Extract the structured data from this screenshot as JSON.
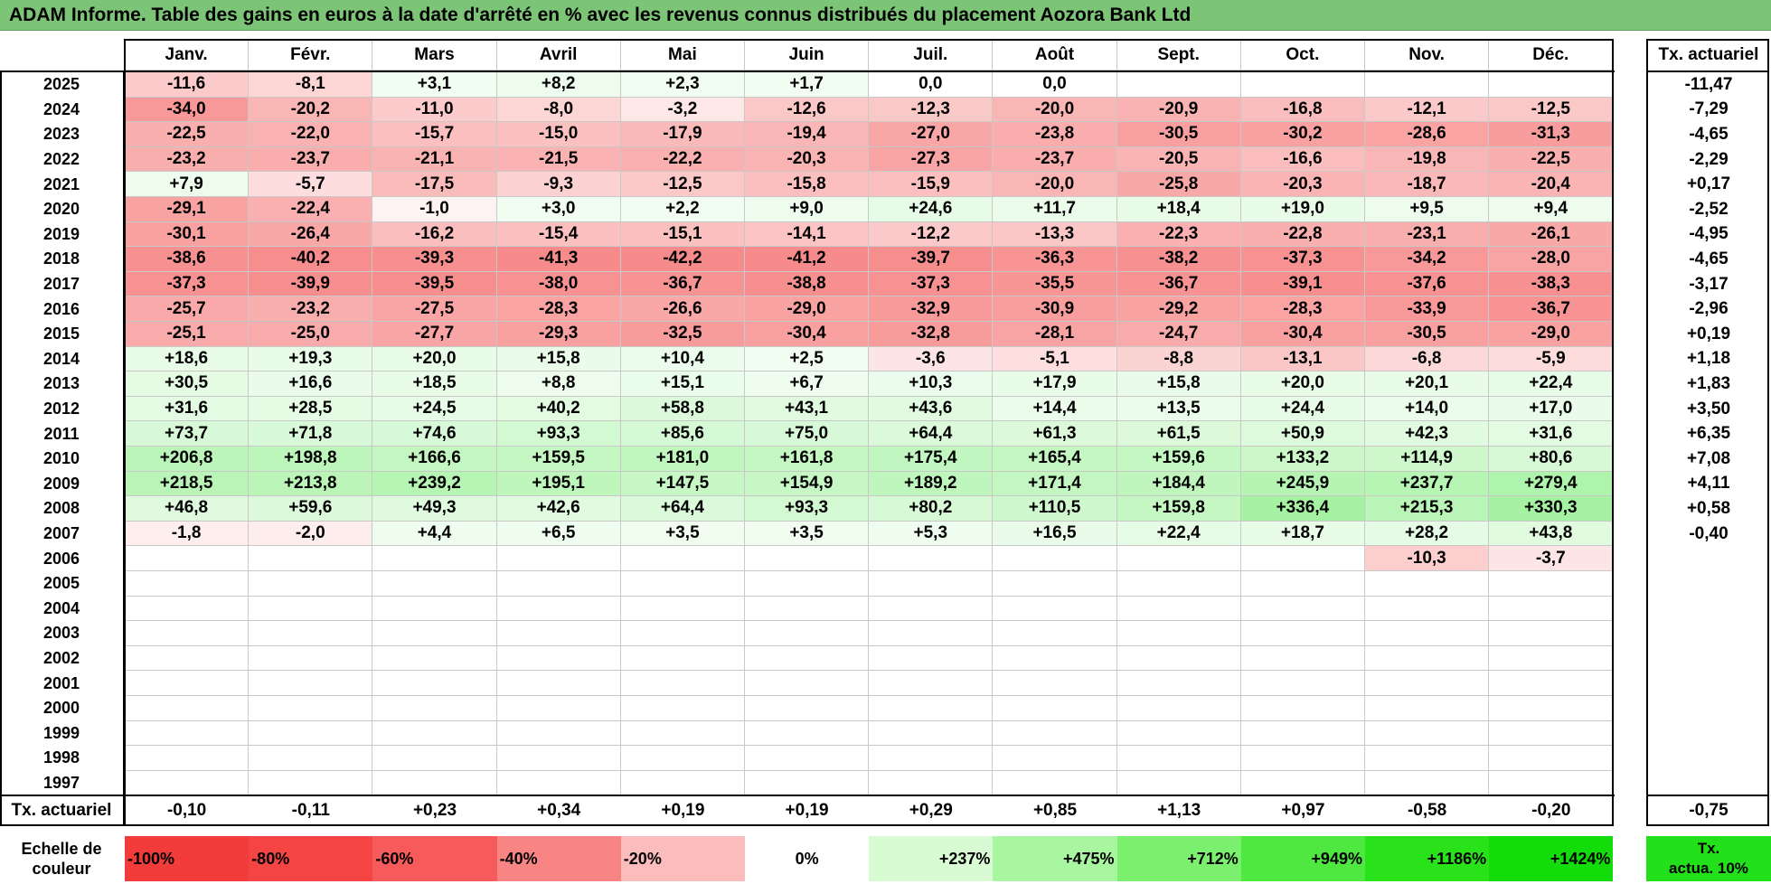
{
  "title": "ADAM Informe. Table des gains en euros à la date d'arrêté en % avec les revenus connus distribués du placement Aozora Bank Ltd",
  "chart_data": {
    "type": "heatmap",
    "months": [
      "Janv.",
      "Févr.",
      "Mars",
      "Avril",
      "Mai",
      "Juin",
      "Juil.",
      "Août",
      "Sept.",
      "Oct.",
      "Nov.",
      "Déc."
    ],
    "years": [
      "2025",
      "2024",
      "2023",
      "2022",
      "2021",
      "2020",
      "2019",
      "2018",
      "2017",
      "2016",
      "2015",
      "2014",
      "2013",
      "2012",
      "2011",
      "2010",
      "2009",
      "2008",
      "2007",
      "2006",
      "2005",
      "2004",
      "2003",
      "2002",
      "2001",
      "2000",
      "1999",
      "1998",
      "1997"
    ],
    "rate_column_header": "Tx. actuariel",
    "values": [
      [
        "-11,6",
        "-8,1",
        "+3,1",
        "+8,2",
        "+2,3",
        "+1,7",
        "0,0",
        "0,0",
        "",
        "",
        "",
        ""
      ],
      [
        "-34,0",
        "-20,2",
        "-11,0",
        "-8,0",
        "-3,2",
        "-12,6",
        "-12,3",
        "-20,0",
        "-20,9",
        "-16,8",
        "-12,1",
        "-12,5"
      ],
      [
        "-22,5",
        "-22,0",
        "-15,7",
        "-15,0",
        "-17,9",
        "-19,4",
        "-27,0",
        "-23,8",
        "-30,5",
        "-30,2",
        "-28,6",
        "-31,3"
      ],
      [
        "-23,2",
        "-23,7",
        "-21,1",
        "-21,5",
        "-22,2",
        "-20,3",
        "-27,3",
        "-23,7",
        "-20,5",
        "-16,6",
        "-19,8",
        "-22,5"
      ],
      [
        "+7,9",
        "-5,7",
        "-17,5",
        "-9,3",
        "-12,5",
        "-15,8",
        "-15,9",
        "-20,0",
        "-25,8",
        "-20,3",
        "-18,7",
        "-20,4"
      ],
      [
        "-29,1",
        "-22,4",
        "-1,0",
        "+3,0",
        "+2,2",
        "+9,0",
        "+24,6",
        "+11,7",
        "+18,4",
        "+19,0",
        "+9,5",
        "+9,4"
      ],
      [
        "-30,1",
        "-26,4",
        "-16,2",
        "-15,4",
        "-15,1",
        "-14,1",
        "-12,2",
        "-13,3",
        "-22,3",
        "-22,8",
        "-23,1",
        "-26,1"
      ],
      [
        "-38,6",
        "-40,2",
        "-39,3",
        "-41,3",
        "-42,2",
        "-41,2",
        "-39,7",
        "-36,3",
        "-38,2",
        "-37,3",
        "-34,2",
        "-28,0"
      ],
      [
        "-37,3",
        "-39,9",
        "-39,5",
        "-38,0",
        "-36,7",
        "-38,8",
        "-37,3",
        "-35,5",
        "-36,7",
        "-39,1",
        "-37,6",
        "-38,3"
      ],
      [
        "-25,7",
        "-23,2",
        "-27,5",
        "-28,3",
        "-26,6",
        "-29,0",
        "-32,9",
        "-30,9",
        "-29,2",
        "-28,3",
        "-33,9",
        "-36,7"
      ],
      [
        "-25,1",
        "-25,0",
        "-27,7",
        "-29,3",
        "-32,5",
        "-30,4",
        "-32,8",
        "-28,1",
        "-24,7",
        "-30,4",
        "-30,5",
        "-29,0"
      ],
      [
        "+18,6",
        "+19,3",
        "+20,0",
        "+15,8",
        "+10,4",
        "+2,5",
        "-3,6",
        "-5,1",
        "-8,8",
        "-13,1",
        "-6,8",
        "-5,9"
      ],
      [
        "+30,5",
        "+16,6",
        "+18,5",
        "+8,8",
        "+15,1",
        "+6,7",
        "+10,3",
        "+17,9",
        "+15,8",
        "+20,0",
        "+20,1",
        "+22,4"
      ],
      [
        "+31,6",
        "+28,5",
        "+24,5",
        "+40,2",
        "+58,8",
        "+43,1",
        "+43,6",
        "+14,4",
        "+13,5",
        "+24,4",
        "+14,0",
        "+17,0"
      ],
      [
        "+73,7",
        "+71,8",
        "+74,6",
        "+93,3",
        "+85,6",
        "+75,0",
        "+64,4",
        "+61,3",
        "+61,5",
        "+50,9",
        "+42,3",
        "+31,6"
      ],
      [
        "+206,8",
        "+198,8",
        "+166,6",
        "+159,5",
        "+181,0",
        "+161,8",
        "+175,4",
        "+165,4",
        "+159,6",
        "+133,2",
        "+114,9",
        "+80,6"
      ],
      [
        "+218,5",
        "+213,8",
        "+239,2",
        "+195,1",
        "+147,5",
        "+154,9",
        "+189,2",
        "+171,4",
        "+184,4",
        "+245,9",
        "+237,7",
        "+279,4"
      ],
      [
        "+46,8",
        "+59,6",
        "+49,3",
        "+42,6",
        "+64,4",
        "+93,3",
        "+80,2",
        "+110,5",
        "+159,8",
        "+336,4",
        "+215,3",
        "+330,3"
      ],
      [
        "-1,8",
        "-2,0",
        "+4,4",
        "+6,5",
        "+3,5",
        "+3,5",
        "+5,3",
        "+16,5",
        "+22,4",
        "+18,7",
        "+28,2",
        "+43,8"
      ],
      [
        "",
        "",
        "",
        "",
        "",
        "",
        "",
        "",
        "",
        "",
        "-10,3",
        "-3,7"
      ],
      [
        "",
        "",
        "",
        "",
        "",
        "",
        "",
        "",
        "",
        "",
        "",
        ""
      ],
      [
        "",
        "",
        "",
        "",
        "",
        "",
        "",
        "",
        "",
        "",
        "",
        ""
      ],
      [
        "",
        "",
        "",
        "",
        "",
        "",
        "",
        "",
        "",
        "",
        "",
        ""
      ],
      [
        "",
        "",
        "",
        "",
        "",
        "",
        "",
        "",
        "",
        "",
        "",
        ""
      ],
      [
        "",
        "",
        "",
        "",
        "",
        "",
        "",
        "",
        "",
        "",
        "",
        ""
      ],
      [
        "",
        "",
        "",
        "",
        "",
        "",
        "",
        "",
        "",
        "",
        "",
        ""
      ],
      [
        "",
        "",
        "",
        "",
        "",
        "",
        "",
        "",
        "",
        "",
        "",
        ""
      ],
      [
        "",
        "",
        "",
        "",
        "",
        "",
        "",
        "",
        "",
        "",
        "",
        ""
      ],
      [
        "",
        "",
        "",
        "",
        "",
        "",
        "",
        "",
        "",
        "",
        "",
        ""
      ]
    ],
    "year_rates": [
      "-11,47",
      "-7,29",
      "-4,65",
      "-2,29",
      "+0,17",
      "-2,52",
      "-4,95",
      "-4,65",
      "-3,17",
      "-2,96",
      "+0,19",
      "+1,18",
      "+1,83",
      "+3,50",
      "+6,35",
      "+7,08",
      "+4,11",
      "+0,58",
      "-0,40",
      "",
      "",
      "",
      "",
      "",
      "",
      "",
      "",
      "",
      ""
    ],
    "footer": {
      "label": "Tx. actuariel",
      "month_rates": [
        "-0,10",
        "-0,11",
        "+0,23",
        "+0,34",
        "+0,19",
        "+0,19",
        "+0,29",
        "+0,85",
        "+1,13",
        "+0,97",
        "-0,58",
        "-0,20"
      ],
      "total_rate": "-0,75"
    },
    "legend": {
      "label_line1": "Echelle de",
      "label_line2": "couleur",
      "items": [
        {
          "label": "-100%",
          "color": "#f23c3c",
          "align": "left"
        },
        {
          "label": "-80%",
          "color": "#f44444",
          "align": "left"
        },
        {
          "label": "-60%",
          "color": "#f65a5a",
          "align": "left"
        },
        {
          "label": "-40%",
          "color": "#f88484",
          "align": "left"
        },
        {
          "label": "-20%",
          "color": "#fbbcbc",
          "align": "left"
        },
        {
          "label": "0%",
          "color": "#ffffff",
          "align": "center"
        },
        {
          "label": "+237%",
          "color": "#d8fbd4",
          "align": "right"
        },
        {
          "label": "+475%",
          "color": "#a8f6a0",
          "align": "right"
        },
        {
          "label": "+712%",
          "color": "#7bf06f",
          "align": "right"
        },
        {
          "label": "+949%",
          "color": "#4ee840",
          "align": "right"
        },
        {
          "label": "+1186%",
          "color": "#2ae21a",
          "align": "right"
        },
        {
          "label": "+1424%",
          "color": "#12dd0a",
          "align": "right"
        }
      ],
      "rate_label_line1": "Tx.",
      "rate_label_line2": "actua. 10%",
      "rate_color": "#22e01a"
    },
    "color_scale": {
      "negative": "#f24040",
      "zero": "#ffffff",
      "positive": "#12dd0a",
      "neg_min": -100,
      "pos_max": 1424
    }
  }
}
